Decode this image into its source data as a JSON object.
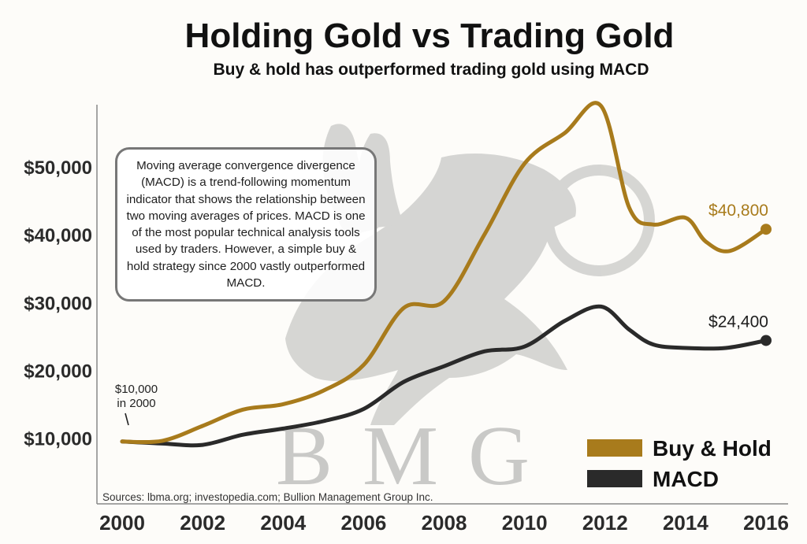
{
  "title": "Holding Gold vs Trading Gold",
  "subtitle": "Buy & hold has outperformed trading gold using MACD",
  "annotation": "Moving average convergence divergence (MACD) is a trend-following momentum indicator that shows the relationship between two moving averages of prices. MACD is one of the most popular technical analysis tools used by traders. However, a simple buy & hold strategy since 2000 vastly outperformed MACD.",
  "start_note_line1": "$10,000",
  "start_note_line2": "in 2000",
  "source": "Sources: lbma.org; investopedia.com; Bullion Management Group Inc.",
  "watermark": "BMG",
  "colors": {
    "buy_hold": "#a87b1c",
    "macd": "#2a2a2a",
    "watermark": "#c9c9c7",
    "axis": "#888888"
  },
  "chart_data": {
    "type": "line",
    "x_ticks": [
      "2000",
      "2002",
      "2004",
      "2006",
      "2008",
      "2010",
      "2012",
      "2014",
      "2016"
    ],
    "y_ticks": [
      "$10,000",
      "$20,000",
      "$30,000",
      "$40,000",
      "$50,000"
    ],
    "y_tick_values": [
      10000,
      20000,
      30000,
      40000,
      50000
    ],
    "xlim": [
      2000,
      2016
    ],
    "ylim": [
      5000,
      60000
    ],
    "legend_position": "bottom-right",
    "series": [
      {
        "name": "Buy & Hold",
        "color": "#a87b1c",
        "end_label": "$40,800",
        "points": [
          [
            2000,
            9500
          ],
          [
            2001,
            9600
          ],
          [
            2002,
            11800
          ],
          [
            2003,
            14200
          ],
          [
            2004,
            15000
          ],
          [
            2005,
            17000
          ],
          [
            2006,
            20800
          ],
          [
            2007,
            29200
          ],
          [
            2008,
            30200
          ],
          [
            2009,
            40000
          ],
          [
            2010,
            50500
          ],
          [
            2011,
            55000
          ],
          [
            2011.9,
            59000
          ],
          [
            2012.6,
            44000
          ],
          [
            2013.2,
            41500
          ],
          [
            2014,
            42500
          ],
          [
            2014.5,
            39000
          ],
          [
            2015.1,
            37600
          ],
          [
            2016,
            40800
          ]
        ]
      },
      {
        "name": "MACD",
        "color": "#2a2a2a",
        "end_label": "$24,400",
        "points": [
          [
            2000,
            9500
          ],
          [
            2001,
            9200
          ],
          [
            2002,
            9000
          ],
          [
            2003,
            10500
          ],
          [
            2004,
            11400
          ],
          [
            2005,
            12500
          ],
          [
            2006,
            14300
          ],
          [
            2007,
            18300
          ],
          [
            2008,
            20600
          ],
          [
            2009,
            22800
          ],
          [
            2010,
            23500
          ],
          [
            2011,
            27300
          ],
          [
            2011.9,
            29400
          ],
          [
            2012.6,
            26000
          ],
          [
            2013.2,
            23800
          ],
          [
            2014,
            23300
          ],
          [
            2015,
            23300
          ],
          [
            2016,
            24400
          ]
        ]
      }
    ]
  }
}
